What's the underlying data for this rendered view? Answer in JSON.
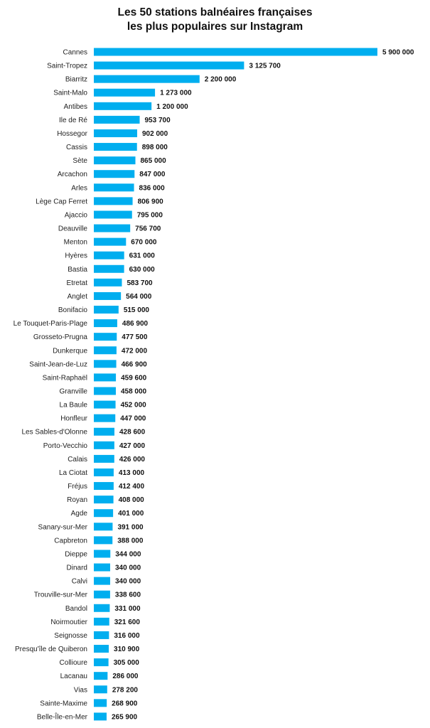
{
  "chart_data": {
    "type": "bar",
    "orientation": "horizontal",
    "title_line1": "Les 50 stations balnéaires françaises",
    "title_line2": "les plus populaires sur Instagram",
    "bar_color": "#00AEEF",
    "grid": false,
    "legend": "none",
    "xlim": [
      0,
      5900000
    ],
    "categories": [
      "Cannes",
      "Saint-Tropez",
      "Biarritz",
      "Saint-Malo",
      "Antibes",
      "Ile de Ré",
      "Hossegor",
      "Cassis",
      "Sète",
      "Arcachon",
      "Arles",
      "Lège Cap Ferret",
      "Ajaccio",
      "Deauville",
      "Menton",
      "Hyères",
      "Bastia",
      "Etretat",
      "Anglet",
      "Bonifacio",
      "Le Touquet-Paris-Plage",
      "Grosseto-Prugna",
      "Dunkerque",
      "Saint-Jean-de-Luz",
      "Saint-Raphaël",
      "Granville",
      "La Baule",
      "Honfleur",
      "Les Sables-d'Olonne",
      "Porto-Vecchio",
      "Calais",
      "La Ciotat",
      "Fréjus",
      "Royan",
      "Agde",
      "Sanary-sur-Mer",
      "Capbreton",
      "Dieppe",
      "Dinard",
      "Calvi",
      "Trouville-sur-Mer",
      "Bandol",
      "Noirmoutier",
      "Seignosse",
      "Presqu'île de Quiberon",
      "Collioure",
      "Lacanau",
      "Vias",
      "Sainte-Maxime",
      "Belle-Île-en-Mer"
    ],
    "values": [
      5900000,
      3125700,
      2200000,
      1273000,
      1200000,
      953700,
      902000,
      898000,
      865000,
      847000,
      836000,
      806900,
      795000,
      756700,
      670000,
      631000,
      630000,
      583700,
      564000,
      515000,
      486900,
      477500,
      472000,
      466900,
      459600,
      458000,
      452000,
      447000,
      428600,
      427000,
      426000,
      413000,
      412400,
      408000,
      401000,
      391000,
      388000,
      344000,
      340000,
      340000,
      338600,
      331000,
      321600,
      316000,
      310900,
      305000,
      286000,
      278200,
      268900,
      265900
    ],
    "value_labels": [
      "5 900 000",
      "3 125 700",
      "2 200 000",
      "1 273 000",
      "1 200 000",
      "953 700",
      "902 000",
      "898 000",
      "865 000",
      "847 000",
      "836 000",
      "806 900",
      "795 000",
      "756 700",
      "670 000",
      "631 000",
      "630 000",
      "583 700",
      "564 000",
      "515 000",
      "486 900",
      "477 500",
      "472 000",
      "466 900",
      "459 600",
      "458 000",
      "452 000",
      "447 000",
      "428 600",
      "427 000",
      "426 000",
      "413 000",
      "412 400",
      "408 000",
      "401 000",
      "391 000",
      "388 000",
      "344 000",
      "340 000",
      "340 000",
      "338 600",
      "331 000",
      "321 600",
      "316 000",
      "310 900",
      "305 000",
      "286 000",
      "278 200",
      "268 900",
      "265 900"
    ]
  }
}
